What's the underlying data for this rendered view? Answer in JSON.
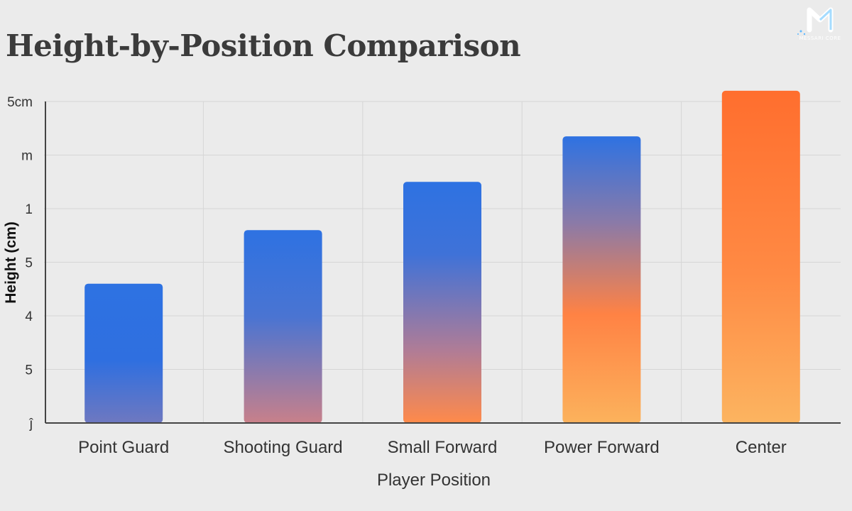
{
  "chart_data": {
    "type": "bar",
    "title": "Height-by-Position Comparison",
    "xlabel": "Player Position",
    "ylabel": "Height (cm)",
    "categories": [
      "Point Guard",
      "Shooting Guard",
      "Small Forward",
      "Power Forward",
      "Center"
    ],
    "values": [
      2.6,
      3.6,
      4.5,
      5.35,
      6.2
    ],
    "ylim": [
      0,
      6
    ],
    "y_ticks": [
      {
        "value": 0,
        "label": "ĵ"
      },
      {
        "value": 1,
        "label": "5"
      },
      {
        "value": 2,
        "label": "4"
      },
      {
        "value": 3,
        "label": "5"
      },
      {
        "value": 4,
        "label": "1"
      },
      {
        "value": 5,
        "label": "m"
      },
      {
        "value": 6,
        "label": "5cm"
      }
    ],
    "grid": true,
    "legend": "none",
    "colors": {
      "blue": "#2e72e2",
      "orange": "#ff6e2e",
      "light_orange": "#fcb25c",
      "grid": "#d6d6d6",
      "axis_text": "#333333",
      "background": "#ebebeb"
    }
  },
  "logo": {
    "text": "MESSARI CORE",
    "letter": "M"
  }
}
